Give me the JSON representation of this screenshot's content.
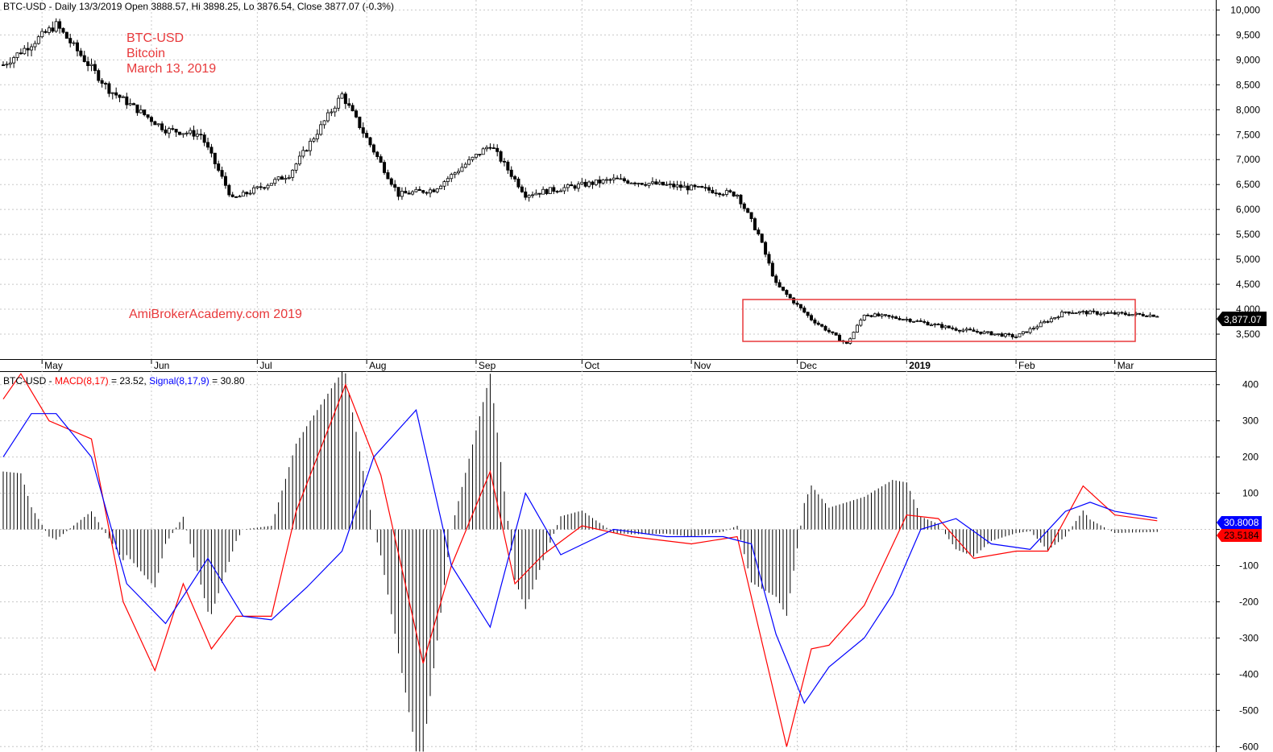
{
  "price_panel": {
    "header": "BTC-USD - Daily 13/3/2019 Open 3888.57, Hi 3898.25, Lo 3876.54, Close 3877.07 (-0.3%)",
    "annotation": {
      "line1": "BTC-USD",
      "line2": "Bitcoin",
      "line3": "March 13, 2019"
    },
    "watermark": "AmiBrokerAcademy.com  2019",
    "last_price_label": "3,877.07",
    "accent_color": "#e8393b"
  },
  "macd_panel": {
    "header_prefix": "BTC-USD - ",
    "header_macd": "MACD(8,17)",
    "header_macd_value": " = 23.52, ",
    "header_signal": "Signal(8,17,9)",
    "header_signal_value": " = 30.80",
    "signal_value_label": "30.8008",
    "macd_value_label": "23.5184",
    "macd_color": "#ff0000",
    "signal_color": "#0000ff"
  },
  "chart_data": [
    {
      "type": "candlestick",
      "y_ticks": [
        "3,500",
        "4,000",
        "4,500",
        "5,000",
        "5,500",
        "6,000",
        "6,500",
        "7,000",
        "7,500",
        "8,000",
        "8,500",
        "9,000",
        "9,500",
        "10,000"
      ],
      "x_labels": [
        "May",
        "Jun",
        "Jul",
        "Aug",
        "Sep",
        "Oct",
        "Nov",
        "Dec",
        "2019",
        "Feb",
        "Mar"
      ],
      "ylim": [
        3000,
        10200
      ],
      "x": [
        "2018-04-20",
        "2018-05-05",
        "2018-05-20",
        "2018-06-05",
        "2018-06-15",
        "2018-06-24",
        "2018-07-10",
        "2018-07-25",
        "2018-08-10",
        "2018-08-20",
        "2018-09-05",
        "2018-09-15",
        "2018-10-10",
        "2018-11-05",
        "2018-11-14",
        "2018-11-20",
        "2018-11-25",
        "2018-12-05",
        "2018-12-15",
        "2018-12-20",
        "2019-01-01",
        "2019-01-15",
        "2019-02-01",
        "2019-02-15",
        "2019-03-13"
      ],
      "close": [
        8900,
        9700,
        8400,
        7600,
        7500,
        6200,
        6700,
        8300,
        6300,
        6400,
        7300,
        6300,
        6600,
        6400,
        6300,
        5500,
        4500,
        3800,
        3300,
        3900,
        3800,
        3600,
        3450,
        3950,
        3877
      ]
    },
    {
      "type": "line",
      "title": "MACD(8,17)",
      "y_ticks": [
        "-600",
        "-500",
        "-400",
        "-300",
        "-200",
        "-100",
        "0",
        "100",
        "200",
        "300",
        "400"
      ],
      "ylim": [
        -615,
        435
      ],
      "series": [
        {
          "name": "MACD(8,17)",
          "color": "#ff0000",
          "x": [
            "2018-04-20",
            "2018-04-25",
            "2018-05-03",
            "2018-05-15",
            "2018-05-24",
            "2018-06-02",
            "2018-06-10",
            "2018-06-18",
            "2018-06-25",
            "2018-07-05",
            "2018-07-12",
            "2018-07-20",
            "2018-07-26",
            "2018-08-05",
            "2018-08-17",
            "2018-08-25",
            "2018-09-05",
            "2018-09-12",
            "2018-09-20",
            "2018-10-01",
            "2018-10-15",
            "2018-11-01",
            "2018-11-14",
            "2018-11-20",
            "2018-11-28",
            "2018-12-05",
            "2018-12-10",
            "2018-12-20",
            "2019-01-01",
            "2019-01-10",
            "2019-01-20",
            "2019-02-01",
            "2019-02-10",
            "2019-02-20",
            "2019-03-01",
            "2019-03-13"
          ],
          "values": [
            360,
            430,
            300,
            250,
            -200,
            -390,
            -150,
            -330,
            -240,
            -240,
            50,
            250,
            400,
            150,
            -370,
            -100,
            160,
            -150,
            -70,
            10,
            -20,
            -40,
            -20,
            -270,
            -600,
            -330,
            -320,
            -210,
            40,
            30,
            -80,
            -60,
            -60,
            120,
            40,
            24
          ]
        },
        {
          "name": "Signal(8,17,9)",
          "color": "#0000ff",
          "x": [
            "2018-04-20",
            "2018-04-28",
            "2018-05-05",
            "2018-05-15",
            "2018-05-25",
            "2018-06-05",
            "2018-06-17",
            "2018-06-27",
            "2018-07-05",
            "2018-07-15",
            "2018-07-25",
            "2018-08-03",
            "2018-08-15",
            "2018-08-25",
            "2018-09-05",
            "2018-09-15",
            "2018-09-25",
            "2018-10-10",
            "2018-10-25",
            "2018-11-10",
            "2018-11-18",
            "2018-11-25",
            "2018-12-03",
            "2018-12-10",
            "2018-12-20",
            "2018-12-28",
            "2019-01-05",
            "2019-01-15",
            "2019-01-25",
            "2019-02-05",
            "2019-02-15",
            "2019-02-22",
            "2019-03-01",
            "2019-03-13"
          ],
          "values": [
            200,
            320,
            320,
            200,
            -150,
            -260,
            -80,
            -240,
            -250,
            -160,
            -60,
            200,
            330,
            -100,
            -270,
            100,
            -70,
            0,
            -20,
            -20,
            -40,
            -290,
            -480,
            -380,
            -300,
            -180,
            0,
            30,
            -40,
            -55,
            50,
            75,
            50,
            31
          ]
        }
      ]
    }
  ]
}
